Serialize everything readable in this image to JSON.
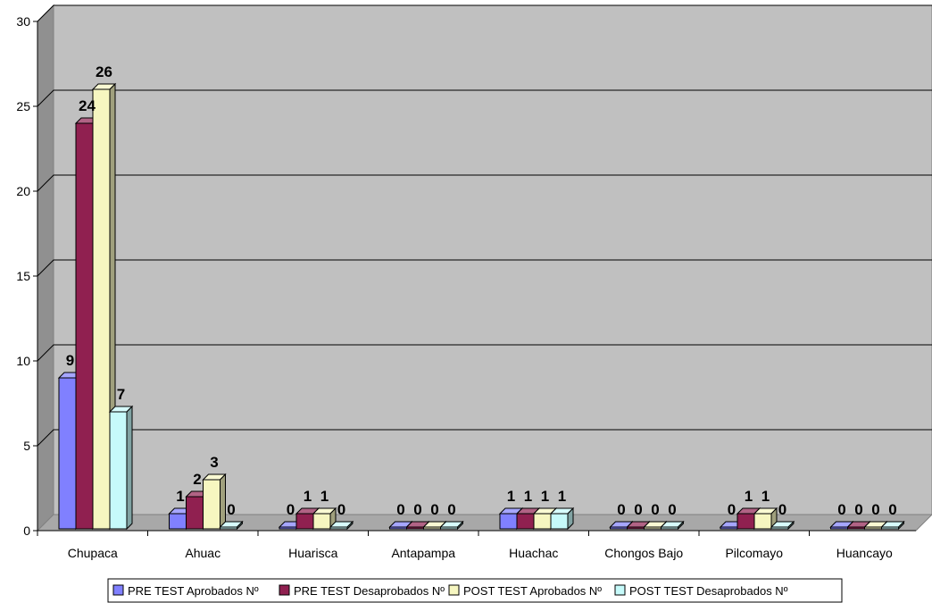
{
  "chart_data": {
    "type": "bar",
    "title": "",
    "xlabel": "",
    "ylabel": "",
    "ylim": [
      0,
      30
    ],
    "yticks": [
      "0",
      "5",
      "10",
      "15",
      "20",
      "25",
      "30"
    ],
    "grid": true,
    "legend_position": "bottom",
    "categories": [
      "Chupaca",
      "Ahuac",
      "Huarisca",
      "Antapampa",
      "Huachac",
      "Chongos Bajo",
      "Pilcomayo",
      "Huancayo"
    ],
    "series": [
      {
        "name": "PRE TEST Aprobados Nº",
        "values": [
          9,
          1,
          0,
          0,
          1,
          0,
          0,
          0
        ],
        "color": "#8080ff"
      },
      {
        "name": "PRE TEST Desaprobados Nº",
        "values": [
          24,
          2,
          1,
          0,
          1,
          0,
          1,
          0
        ],
        "color": "#902050"
      },
      {
        "name": "POST TEST Aprobados Nº",
        "values": [
          26,
          3,
          1,
          0,
          1,
          0,
          1,
          0
        ],
        "color": "#f6f6c0"
      },
      {
        "name": "POST TEST Desaprobados Nº",
        "values": [
          7,
          0,
          0,
          0,
          1,
          0,
          0,
          0
        ],
        "color": "#c6fafa"
      }
    ],
    "colors": {
      "wall": "#c0c0c0",
      "floor": "#a8a8a8",
      "grid": "#000000"
    }
  }
}
